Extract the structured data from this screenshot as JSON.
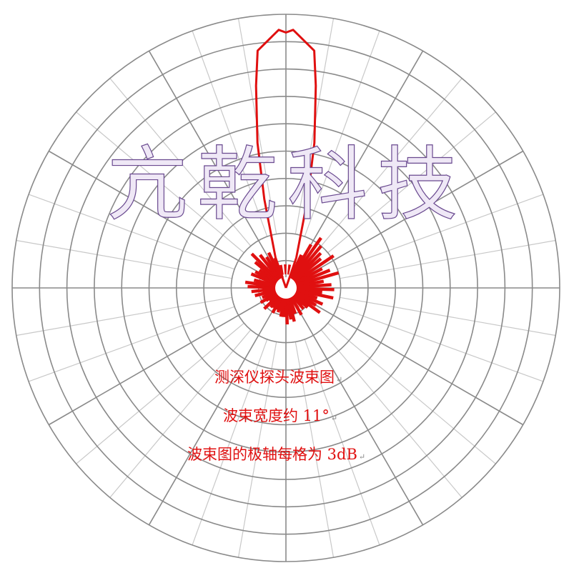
{
  "chart_data": {
    "type": "polar",
    "title": "测深仪探头波束图",
    "annotations": [
      "波束宽度约 11°",
      "波束图的极轴每格为 3dB"
    ],
    "radial_unit": "dB",
    "radial_step": 3,
    "radial_range": [
      -30,
      0
    ],
    "angular_grid_major_deg": 30,
    "angular_grid_minor_deg": 10,
    "grid": true,
    "series": [
      {
        "color": "#e01010",
        "main_lobe": [
          [
            -19,
            -26.5
          ],
          [
            -13.7,
            -20
          ],
          [
            -11.1,
            -13.8
          ],
          [
            -8.4,
            -7.6
          ],
          [
            -6.8,
            -3.8
          ],
          [
            -1.6,
            -1.7
          ],
          [
            0,
            -2.0
          ],
          [
            1.6,
            -1.7
          ],
          [
            6.8,
            -3.8
          ],
          [
            8.4,
            -7.6
          ],
          [
            11.1,
            -13.8
          ],
          [
            13.7,
            -20
          ],
          [
            19,
            -26.5
          ]
        ],
        "side_lobes": [
          [
            25,
            -26.0
          ],
          [
            30,
            -24.5
          ],
          [
            35,
            -23.3
          ],
          [
            40,
            -24.0
          ],
          [
            45,
            -24.6
          ],
          [
            50,
            -25.0
          ],
          [
            56,
            -23.7
          ],
          [
            62,
            -25.5
          ],
          [
            68,
            -24.8
          ],
          [
            74,
            -24.0
          ],
          [
            80,
            -25.8
          ],
          [
            86,
            -25.0
          ],
          [
            92,
            -24.7
          ],
          [
            97,
            -26.0
          ],
          [
            102,
            -24.7
          ],
          [
            108,
            -26.4
          ],
          [
            114,
            -25.6
          ],
          [
            120,
            -26.2
          ],
          [
            126,
            -25.4
          ],
          [
            132,
            -26.8
          ],
          [
            140,
            -27.0
          ],
          [
            150,
            -26.6
          ],
          [
            160,
            -27.0
          ],
          [
            166,
            -26.2
          ],
          [
            171,
            -26.5
          ],
          [
            178,
            -26.0
          ],
          [
            184,
            -26.8
          ],
          [
            190,
            -26.8
          ],
          [
            198,
            -27.2
          ],
          [
            208,
            -26.9
          ],
          [
            218,
            -27.3
          ],
          [
            226,
            -26.7
          ],
          [
            233,
            -27.7
          ],
          [
            240,
            -26.8
          ],
          [
            248,
            -27.2
          ],
          [
            256,
            -26.5
          ],
          [
            264,
            -26.2
          ],
          [
            272,
            -25.8
          ],
          [
            278,
            -25.5
          ],
          [
            284,
            -26.4
          ],
          [
            292,
            -25.9
          ],
          [
            298,
            -26.2
          ],
          [
            304,
            -26.5
          ],
          [
            310,
            -25.6
          ],
          [
            315,
            -24.7
          ],
          [
            322,
            -25.4
          ],
          [
            328,
            -26.0
          ],
          [
            334,
            -25.7
          ],
          [
            340,
            -26.5
          ]
        ]
      }
    ]
  },
  "watermark": "亢乾科技",
  "para_mark": "↵"
}
